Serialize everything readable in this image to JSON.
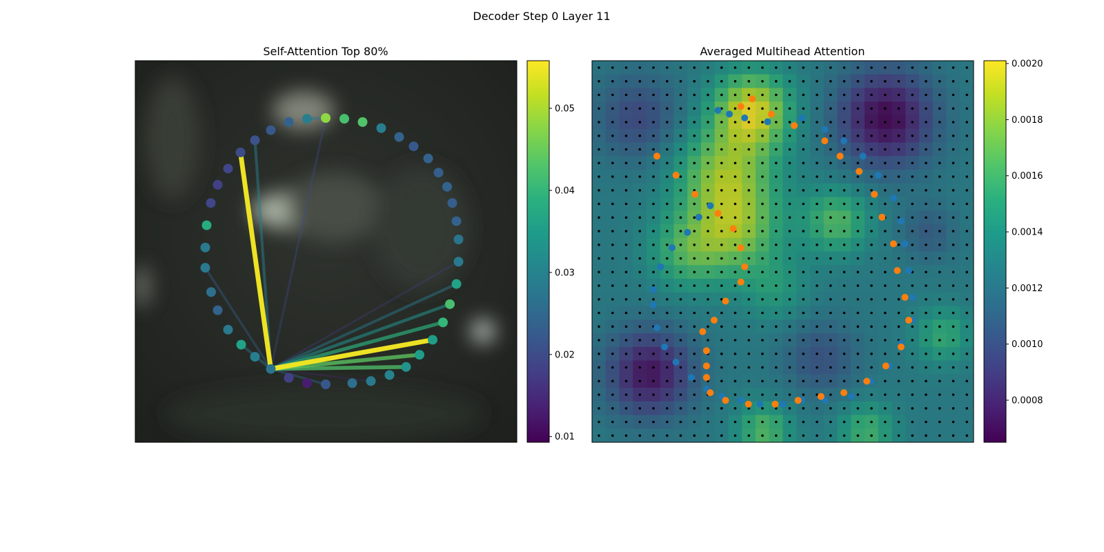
{
  "figure": {
    "suptitle": "Decoder Step 0 Layer 11"
  },
  "chart_data": [
    {
      "type": "scatter",
      "title": "Self-Attention Top 80%",
      "description_points": "contour points with attention-colored markers and top-attention links",
      "colormap": "viridis",
      "colorbar": {
        "ticks": [
          0.01,
          0.02,
          0.03,
          0.04,
          0.05
        ],
        "tick_labels": [
          "0.01",
          "0.02",
          "0.03",
          "0.04",
          "0.05"
        ],
        "range": [
          0.0093,
          0.0558
        ]
      },
      "points": [
        {
          "x": 0.0,
          "y": 1.0,
          "v": 0.048
        },
        {
          "x": 0.054,
          "y": 0.998,
          "v": 0.042
        },
        {
          "x": 0.107,
          "y": 0.99,
          "v": 0.043
        },
        {
          "x": 0.161,
          "y": 0.975,
          "v": 0.029
        },
        {
          "x": 0.213,
          "y": 0.953,
          "v": 0.024
        },
        {
          "x": 0.255,
          "y": 0.93,
          "v": 0.022
        },
        {
          "x": 0.297,
          "y": 0.9,
          "v": 0.024
        },
        {
          "x": 0.327,
          "y": 0.865,
          "v": 0.023
        },
        {
          "x": 0.352,
          "y": 0.83,
          "v": 0.024
        },
        {
          "x": 0.367,
          "y": 0.79,
          "v": 0.023
        },
        {
          "x": 0.379,
          "y": 0.745,
          "v": 0.024
        },
        {
          "x": 0.385,
          "y": 0.7,
          "v": 0.027
        },
        {
          "x": 0.385,
          "y": 0.645,
          "v": 0.028
        },
        {
          "x": 0.379,
          "y": 0.59,
          "v": 0.036
        },
        {
          "x": 0.36,
          "y": 0.54,
          "v": 0.042
        },
        {
          "x": 0.34,
          "y": 0.495,
          "v": 0.04
        },
        {
          "x": 0.31,
          "y": 0.452,
          "v": 0.035
        },
        {
          "x": 0.272,
          "y": 0.415,
          "v": 0.035
        },
        {
          "x": 0.233,
          "y": 0.385,
          "v": 0.033
        },
        {
          "x": 0.185,
          "y": 0.365,
          "v": 0.03
        },
        {
          "x": 0.131,
          "y": 0.35,
          "v": 0.028
        },
        {
          "x": 0.077,
          "y": 0.345,
          "v": 0.026
        },
        {
          "x": 0.0,
          "y": 0.342,
          "v": 0.022
        },
        {
          "x": -0.054,
          "y": 0.345,
          "v": 0.013
        },
        {
          "x": -0.107,
          "y": 0.358,
          "v": 0.018
        },
        {
          "x": -0.159,
          "y": 0.38,
          "v": 0.027
        },
        {
          "x": -0.205,
          "y": 0.41,
          "v": 0.029
        },
        {
          "x": -0.245,
          "y": 0.44,
          "v": 0.036
        },
        {
          "x": -0.283,
          "y": 0.477,
          "v": 0.028
        },
        {
          "x": -0.313,
          "y": 0.525,
          "v": 0.024
        },
        {
          "x": -0.332,
          "y": 0.57,
          "v": 0.026
        },
        {
          "x": -0.349,
          "y": 0.63,
          "v": 0.028
        },
        {
          "x": -0.349,
          "y": 0.68,
          "v": 0.028
        },
        {
          "x": -0.345,
          "y": 0.735,
          "v": 0.038
        },
        {
          "x": -0.333,
          "y": 0.79,
          "v": 0.019
        },
        {
          "x": -0.313,
          "y": 0.835,
          "v": 0.018
        },
        {
          "x": -0.283,
          "y": 0.875,
          "v": 0.019
        },
        {
          "x": -0.247,
          "y": 0.915,
          "v": 0.02
        },
        {
          "x": -0.205,
          "y": 0.945,
          "v": 0.021
        },
        {
          "x": -0.159,
          "y": 0.97,
          "v": 0.022
        },
        {
          "x": -0.107,
          "y": 0.99,
          "v": 0.024
        },
        {
          "x": -0.054,
          "y": 0.998,
          "v": 0.029
        }
      ],
      "links": [
        {
          "from": 25,
          "to": 37,
          "v": 0.055
        },
        {
          "from": 25,
          "to": 16,
          "v": 0.055
        },
        {
          "from": 25,
          "to": 17,
          "v": 0.044
        },
        {
          "from": 25,
          "to": 15,
          "v": 0.039
        },
        {
          "from": 25,
          "to": 14,
          "v": 0.033
        },
        {
          "from": 25,
          "to": 13,
          "v": 0.028
        },
        {
          "from": 25,
          "to": 18,
          "v": 0.043
        },
        {
          "from": 25,
          "to": 38,
          "v": 0.029
        },
        {
          "from": 25,
          "to": 27,
          "v": 0.027
        },
        {
          "from": 25,
          "to": 22,
          "v": 0.024
        },
        {
          "from": 25,
          "to": 31,
          "v": 0.023
        },
        {
          "from": 25,
          "to": 0,
          "v": 0.02
        },
        {
          "from": 25,
          "to": 12,
          "v": 0.018
        },
        {
          "from": 25,
          "to": 20,
          "v": 0.015
        },
        {
          "from": 0,
          "to": 41,
          "v": 0.027
        }
      ]
    },
    {
      "type": "heatmap",
      "title": "Averaged Multihead Attention",
      "colormap": "viridis",
      "colorbar": {
        "ticks": [
          0.0008,
          0.001,
          0.0012,
          0.0014,
          0.0016,
          0.0018,
          0.002
        ],
        "tick_labels": [
          "0.0008",
          "0.0010",
          "0.0012",
          "0.0014",
          "0.0016",
          "0.0018",
          "0.0020"
        ],
        "range": [
          0.00065,
          0.00201
        ]
      },
      "grid_size": 28,
      "blobs": [
        {
          "cx": 0.42,
          "cy": 0.13,
          "s": 0.07,
          "a": 0.0007
        },
        {
          "cx": 0.35,
          "cy": 0.3,
          "s": 0.09,
          "a": 0.00055
        },
        {
          "cx": 0.38,
          "cy": 0.45,
          "s": 0.08,
          "a": 0.00045
        },
        {
          "cx": 0.64,
          "cy": 0.42,
          "s": 0.06,
          "a": 0.0004
        },
        {
          "cx": 0.25,
          "cy": 0.5,
          "s": 0.07,
          "a": 0.00035
        },
        {
          "cx": 0.45,
          "cy": 0.97,
          "s": 0.05,
          "a": 0.0004
        },
        {
          "cx": 0.72,
          "cy": 0.97,
          "s": 0.05,
          "a": 0.00035
        },
        {
          "cx": 0.92,
          "cy": 0.72,
          "s": 0.05,
          "a": 0.0003
        },
        {
          "cx": 0.48,
          "cy": 0.6,
          "s": 0.06,
          "a": 0.0002
        },
        {
          "cx": 0.77,
          "cy": 0.15,
          "s": 0.09,
          "a": -0.0006
        },
        {
          "cx": 0.15,
          "cy": 0.82,
          "s": 0.08,
          "a": -0.00055
        },
        {
          "cx": 0.12,
          "cy": 0.15,
          "s": 0.08,
          "a": -0.0003
        },
        {
          "cx": 0.6,
          "cy": 0.78,
          "s": 0.07,
          "a": -0.00025
        },
        {
          "cx": 0.88,
          "cy": 0.45,
          "s": 0.05,
          "a": -0.0002
        }
      ],
      "base_value": 0.00125,
      "series": [
        {
          "name": "",
          "color": "#1f77b4",
          "points": [
            [
              0.33,
              0.87
            ],
            [
              0.36,
              0.86
            ],
            [
              0.4,
              0.85
            ],
            [
              0.46,
              0.84
            ],
            [
              0.55,
              0.85
            ],
            [
              0.61,
              0.82
            ],
            [
              0.66,
              0.79
            ],
            [
              0.71,
              0.75
            ],
            [
              0.75,
              0.7
            ],
            [
              0.79,
              0.64
            ],
            [
              0.81,
              0.58
            ],
            [
              0.82,
              0.52
            ],
            [
              0.83,
              0.45
            ],
            [
              0.84,
              0.38
            ],
            [
              0.84,
              0.32
            ],
            [
              0.81,
              0.26
            ],
            [
              0.78,
              0.2
            ],
            [
              0.73,
              0.16
            ],
            [
              0.68,
              0.12
            ],
            [
              0.61,
              0.11
            ],
            [
              0.55,
              0.11
            ],
            [
              0.5,
              0.1
            ],
            [
              0.44,
              0.1
            ],
            [
              0.39,
              0.11
            ],
            [
              0.34,
              0.12
            ],
            [
              0.3,
              0.14
            ],
            [
              0.26,
              0.17
            ],
            [
              0.22,
              0.21
            ],
            [
              0.19,
              0.25
            ],
            [
              0.17,
              0.3
            ],
            [
              0.16,
              0.36
            ],
            [
              0.16,
              0.4
            ],
            [
              0.18,
              0.46
            ],
            [
              0.21,
              0.51
            ],
            [
              0.25,
              0.55
            ],
            [
              0.28,
              0.59
            ],
            [
              0.31,
              0.62
            ]
          ]
        },
        {
          "name": "",
          "color": "#ff7f0e",
          "points": [
            [
              0.39,
              0.88
            ],
            [
              0.42,
              0.9
            ],
            [
              0.47,
              0.86
            ],
            [
              0.53,
              0.83
            ],
            [
              0.61,
              0.79
            ],
            [
              0.65,
              0.75
            ],
            [
              0.7,
              0.71
            ],
            [
              0.74,
              0.65
            ],
            [
              0.76,
              0.59
            ],
            [
              0.79,
              0.52
            ],
            [
              0.8,
              0.45
            ],
            [
              0.82,
              0.38
            ],
            [
              0.83,
              0.32
            ],
            [
              0.81,
              0.25
            ],
            [
              0.77,
              0.2
            ],
            [
              0.72,
              0.16
            ],
            [
              0.66,
              0.13
            ],
            [
              0.6,
              0.12
            ],
            [
              0.54,
              0.11
            ],
            [
              0.48,
              0.1
            ],
            [
              0.41,
              0.1
            ],
            [
              0.35,
              0.11
            ],
            [
              0.31,
              0.13
            ],
            [
              0.3,
              0.17
            ],
            [
              0.3,
              0.2
            ],
            [
              0.3,
              0.24
            ],
            [
              0.29,
              0.29
            ],
            [
              0.32,
              0.32
            ],
            [
              0.35,
              0.37
            ],
            [
              0.39,
              0.42
            ],
            [
              0.4,
              0.46
            ],
            [
              0.39,
              0.51
            ],
            [
              0.37,
              0.56
            ],
            [
              0.33,
              0.6
            ],
            [
              0.27,
              0.65
            ],
            [
              0.22,
              0.7
            ],
            [
              0.17,
              0.75
            ]
          ]
        }
      ]
    }
  ]
}
